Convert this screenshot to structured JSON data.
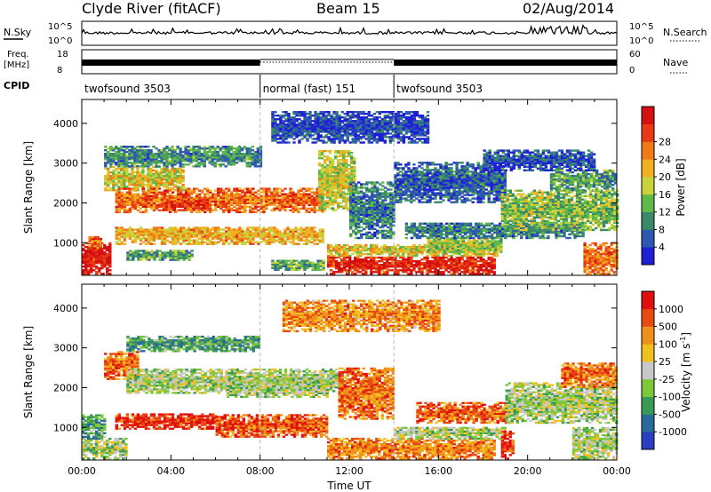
{
  "header": {
    "station": "Clyde River (fitACF)",
    "beam": "Beam 15",
    "date": "02/Aug/2014"
  },
  "aux_panels": {
    "nsky": {
      "left_label": "N.Sky",
      "right_label": "N.Search",
      "tick_top": "10^5",
      "tick_bottom": "10^0",
      "right_tick_top": "10^5",
      "right_tick_bottom": "10^0"
    },
    "freq": {
      "left_label_1": "Freq.",
      "left_label_2": "[MHz]",
      "tick_top": "18",
      "tick_bottom": "8",
      "right_label": "Nave",
      "right_tick_top": "60",
      "right_tick_bottom": "0"
    },
    "cpid": {
      "label": "CPID",
      "segments": [
        {
          "name": "twofsound 3503",
          "start_hour": 0,
          "end_hour": 8
        },
        {
          "name": "normal (fast) 151",
          "start_hour": 8,
          "end_hour": 14
        },
        {
          "name": "twofsound 3503",
          "start_hour": 14,
          "end_hour": 24
        }
      ]
    }
  },
  "chart_data": [
    {
      "type": "heatmap",
      "name": "power",
      "ylabel": "Slant Range [km]",
      "ylim": [
        180,
        4600
      ],
      "yticks": [
        1000,
        2000,
        3000,
        4000
      ],
      "xlim": [
        0,
        24
      ],
      "colorbar": {
        "label": "Power [dB]",
        "ticks": [
          "4",
          "8",
          "12",
          "16",
          "20",
          "24",
          "28"
        ],
        "colors": [
          "#1f1fd6",
          "#2e59b0",
          "#3a8a6a",
          "#5fb84a",
          "#c8d23a",
          "#f0b020",
          "#f07a18",
          "#e83a14",
          "#d41010"
        ]
      },
      "echo_bands": [
        {
          "t0": 0.0,
          "t1": 1.3,
          "r0": 200,
          "r1": 1000,
          "level": 0.95
        },
        {
          "t0": 0.3,
          "t1": 0.9,
          "r0": 850,
          "r1": 1150,
          "level": 0.75
        },
        {
          "t0": 1.0,
          "t1": 4.5,
          "r0": 2300,
          "r1": 2900,
          "level": 0.55
        },
        {
          "t0": 1.5,
          "t1": 10.8,
          "r0": 1750,
          "r1": 2350,
          "level": 0.75
        },
        {
          "t0": 3.5,
          "t1": 5.5,
          "r0": 1800,
          "r1": 2050,
          "level": 0.9
        },
        {
          "t0": 1.5,
          "t1": 10.8,
          "r0": 950,
          "r1": 1400,
          "level": 0.62
        },
        {
          "t0": 1.0,
          "t1": 8.0,
          "r0": 2900,
          "r1": 3400,
          "level": 0.28
        },
        {
          "t0": 2.0,
          "t1": 5.0,
          "r0": 550,
          "r1": 800,
          "level": 0.35
        },
        {
          "t0": 8.5,
          "t1": 10.8,
          "r0": 300,
          "r1": 550,
          "level": 0.35
        },
        {
          "t0": 10.6,
          "t1": 12.2,
          "r0": 1800,
          "r1": 3300,
          "level": 0.5
        },
        {
          "t0": 12.0,
          "t1": 14.0,
          "r0": 1100,
          "r1": 2500,
          "level": 0.25
        },
        {
          "t0": 8.5,
          "t1": 15.5,
          "r0": 3500,
          "r1": 4300,
          "level": 0.12
        },
        {
          "t0": 14.0,
          "t1": 19.0,
          "r0": 2000,
          "r1": 3000,
          "level": 0.18
        },
        {
          "t0": 11.0,
          "t1": 18.6,
          "r0": 650,
          "r1": 950,
          "level": 0.55
        },
        {
          "t0": 11.0,
          "t1": 18.5,
          "r0": 200,
          "r1": 650,
          "level": 0.92
        },
        {
          "t0": 15.5,
          "t1": 18.8,
          "r0": 750,
          "r1": 1150,
          "level": 0.45
        },
        {
          "t0": 14.5,
          "t1": 22.5,
          "r0": 1100,
          "r1": 1500,
          "level": 0.25
        },
        {
          "t0": 18.8,
          "t1": 24.0,
          "r0": 1300,
          "r1": 2300,
          "level": 0.42
        },
        {
          "t0": 21.0,
          "t1": 24.0,
          "r0": 2300,
          "r1": 2800,
          "level": 0.32
        },
        {
          "t0": 22.5,
          "t1": 24.0,
          "r0": 200,
          "r1": 1000,
          "level": 0.72
        },
        {
          "t0": 18.0,
          "t1": 23.0,
          "r0": 2800,
          "r1": 3300,
          "level": 0.15
        }
      ]
    },
    {
      "type": "heatmap",
      "name": "velocity",
      "ylabel": "Slant Range [km]",
      "xlabel": "Time UT",
      "ylim": [
        180,
        4600
      ],
      "yticks": [
        1000,
        2000,
        3000,
        4000
      ],
      "xlim": [
        0,
        24
      ],
      "xticks": [
        "00:00",
        "04:00",
        "08:00",
        "12:00",
        "16:00",
        "20:00",
        "00:00"
      ],
      "colorbar": {
        "label": "Velocity [m s-1]",
        "ticks": [
          "1000",
          "500",
          "100",
          "25",
          "-25",
          "-100",
          "-500",
          "-1000"
        ],
        "colors": [
          "#2a3fbf",
          "#2a6a9a",
          "#3a9a55",
          "#7dc83a",
          "#c8c8c8",
          "#f0c020",
          "#f0901c",
          "#e84a14",
          "#e01010"
        ]
      },
      "echo_bands": [
        {
          "t0": 1.0,
          "t1": 2.5,
          "r0": 2200,
          "r1": 2900,
          "level": 0.78
        },
        {
          "t0": 2.0,
          "t1": 11.5,
          "r0": 1850,
          "r1": 2450,
          "level": 0.45
        },
        {
          "t0": 6.5,
          "t1": 11.0,
          "r0": 1750,
          "r1": 2150,
          "level": 0.45
        },
        {
          "t0": 1.5,
          "t1": 6.0,
          "r0": 950,
          "r1": 1350,
          "level": 0.9
        },
        {
          "t0": 6.0,
          "t1": 11.0,
          "r0": 750,
          "r1": 1300,
          "level": 0.82
        },
        {
          "t0": 0.0,
          "t1": 2.0,
          "r0": 200,
          "r1": 700,
          "level": 0.45
        },
        {
          "t0": 0.0,
          "t1": 1.0,
          "r0": 700,
          "r1": 1300,
          "level": 0.3
        },
        {
          "t0": 11.0,
          "t1": 18.5,
          "r0": 200,
          "r1": 700,
          "level": 0.74
        },
        {
          "t0": 14.0,
          "t1": 19.0,
          "r0": 700,
          "r1": 1000,
          "level": 0.45
        },
        {
          "t0": 11.5,
          "t1": 14.0,
          "r0": 1200,
          "r1": 2500,
          "level": 0.78
        },
        {
          "t0": 15.0,
          "t1": 19.0,
          "r0": 1100,
          "r1": 1600,
          "level": 0.8
        },
        {
          "t0": 18.8,
          "t1": 19.3,
          "r0": 200,
          "r1": 900,
          "level": 0.85
        },
        {
          "t0": 19.0,
          "t1": 24.0,
          "r0": 1100,
          "r1": 2100,
          "level": 0.45
        },
        {
          "t0": 21.5,
          "t1": 24.0,
          "r0": 2000,
          "r1": 2600,
          "level": 0.78
        },
        {
          "t0": 22.0,
          "t1": 24.0,
          "r0": 200,
          "r1": 1000,
          "level": 0.45
        },
        {
          "t0": 2.0,
          "t1": 8.0,
          "r0": 2900,
          "r1": 3300,
          "level": 0.3
        },
        {
          "t0": 9.0,
          "t1": 16.0,
          "r0": 3400,
          "r1": 4200,
          "level": 0.72
        }
      ]
    }
  ]
}
